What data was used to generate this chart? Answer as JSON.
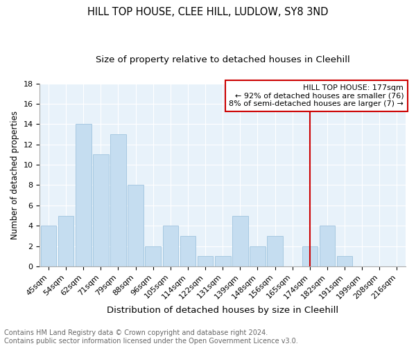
{
  "title": "HILL TOP HOUSE, CLEE HILL, LUDLOW, SY8 3ND",
  "subtitle": "Size of property relative to detached houses in Cleehill",
  "xlabel": "Distribution of detached houses by size in Cleehill",
  "ylabel": "Number of detached properties",
  "categories": [
    "45sqm",
    "54sqm",
    "62sqm",
    "71sqm",
    "79sqm",
    "88sqm",
    "96sqm",
    "105sqm",
    "114sqm",
    "122sqm",
    "131sqm",
    "139sqm",
    "148sqm",
    "156sqm",
    "165sqm",
    "174sqm",
    "182sqm",
    "191sqm",
    "199sqm",
    "208sqm",
    "216sqm"
  ],
  "values": [
    4,
    5,
    14,
    11,
    13,
    8,
    2,
    4,
    3,
    1,
    1,
    5,
    2,
    3,
    0,
    2,
    4,
    1,
    0,
    0,
    0
  ],
  "bar_color": "#c5ddf0",
  "bar_edge_color": "#9fc4de",
  "plot_bg_color": "#e8f2fa",
  "grid_color": "#ffffff",
  "vline_x_index": 15,
  "vline_color": "#cc0000",
  "annotation_text": "HILL TOP HOUSE: 177sqm\n← 92% of detached houses are smaller (76)\n8% of semi-detached houses are larger (7) →",
  "annotation_box_color": "#cc0000",
  "ylim": [
    0,
    18
  ],
  "yticks": [
    0,
    2,
    4,
    6,
    8,
    10,
    12,
    14,
    16,
    18
  ],
  "footnote": "Contains HM Land Registry data © Crown copyright and database right 2024.\nContains public sector information licensed under the Open Government Licence v3.0.",
  "title_fontsize": 10.5,
  "subtitle_fontsize": 9.5,
  "xlabel_fontsize": 9.5,
  "ylabel_fontsize": 8.5,
  "tick_fontsize": 8,
  "annotation_fontsize": 8,
  "footnote_fontsize": 7
}
